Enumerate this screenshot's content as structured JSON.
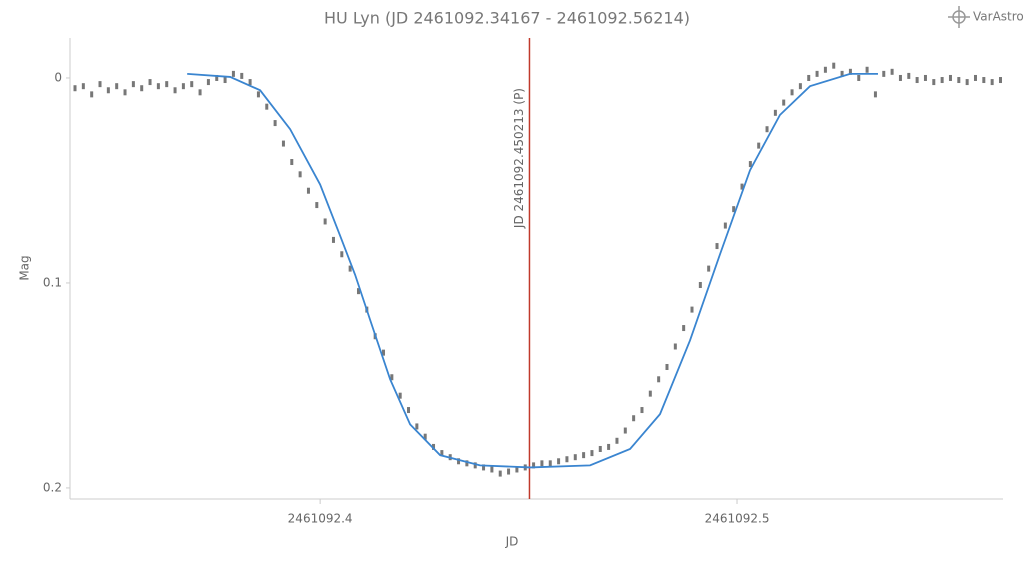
{
  "chart_data": {
    "type": "scatter",
    "title": "HU Lyn (JD 2461092.34167 - 2461092.56214)",
    "watermark": "VarAstro",
    "xlabel": "JD",
    "ylabel": "Mag",
    "xlim": [
      2461092.34,
      2461092.5638
    ],
    "ylim": [
      -0.0195,
      0.2054
    ],
    "y_reversed": true,
    "xticks": [
      2461092.4,
      2461092.5
    ],
    "yticks": [
      0,
      0.1,
      0.2
    ],
    "vline": {
      "x": 2461092.450213,
      "label": "JD 2461092.450213 (P)",
      "color": "#c0392b"
    },
    "series": [
      {
        "type": "scatter",
        "color": "#777777",
        "x": [
          2461092.3412,
          2461092.3432,
          2461092.3452,
          2461092.3472,
          2461092.3492,
          2461092.3512,
          2461092.3532,
          2461092.3552,
          2461092.3572,
          2461092.3592,
          2461092.3612,
          2461092.3632,
          2461092.3652,
          2461092.3672,
          2461092.3692,
          2461092.3712,
          2461092.3732,
          2461092.3752,
          2461092.3772,
          2461092.3792,
          2461092.3812,
          2461092.3832,
          2461092.3852,
          2461092.3872,
          2461092.3892,
          2461092.3912,
          2461092.3932,
          2461092.3952,
          2461092.3972,
          2461092.3992,
          2461092.4012,
          2461092.4032,
          2461092.4052,
          2461092.4072,
          2461092.4092,
          2461092.4112,
          2461092.4132,
          2461092.4152,
          2461092.4172,
          2461092.4192,
          2461092.4212,
          2461092.4232,
          2461092.4252,
          2461092.4272,
          2461092.4292,
          2461092.4312,
          2461092.4332,
          2461092.4352,
          2461092.4372,
          2461092.4392,
          2461092.4412,
          2461092.4432,
          2461092.4452,
          2461092.4472,
          2461092.4492,
          2461092.4512,
          2461092.4532,
          2461092.4552,
          2461092.4572,
          2461092.4592,
          2461092.4612,
          2461092.4632,
          2461092.4652,
          2461092.4672,
          2461092.4692,
          2461092.4712,
          2461092.4732,
          2461092.4752,
          2461092.4772,
          2461092.4792,
          2461092.4812,
          2461092.4832,
          2461092.4852,
          2461092.4872,
          2461092.4892,
          2461092.4912,
          2461092.4932,
          2461092.4952,
          2461092.4972,
          2461092.4992,
          2461092.5012,
          2461092.5032,
          2461092.5052,
          2461092.5072,
          2461092.5092,
          2461092.5112,
          2461092.5132,
          2461092.5152,
          2461092.5172,
          2461092.5192,
          2461092.5212,
          2461092.5232,
          2461092.5252,
          2461092.5272,
          2461092.5292,
          2461092.5312,
          2461092.5332,
          2461092.5352,
          2461092.5372,
          2461092.5392,
          2461092.5412,
          2461092.5432,
          2461092.5452,
          2461092.5472,
          2461092.5492,
          2461092.5512,
          2461092.5532,
          2461092.5552,
          2461092.5572,
          2461092.5592,
          2461092.5612,
          2461092.5632
        ],
        "values": [
          0.005,
          0.004,
          0.008,
          0.003,
          0.006,
          0.004,
          0.007,
          0.003,
          0.005,
          0.002,
          0.004,
          0.003,
          0.006,
          0.004,
          0.003,
          0.007,
          0.002,
          0.0,
          0.001,
          -0.002,
          -0.001,
          0.002,
          0.008,
          0.014,
          0.022,
          0.032,
          0.041,
          0.047,
          0.055,
          0.062,
          0.07,
          0.079,
          0.086,
          0.093,
          0.104,
          0.113,
          0.126,
          0.134,
          0.146,
          0.155,
          0.162,
          0.17,
          0.175,
          0.18,
          0.183,
          0.185,
          0.187,
          0.188,
          0.189,
          0.19,
          0.191,
          0.193,
          0.192,
          0.191,
          0.19,
          0.189,
          0.188,
          0.188,
          0.187,
          0.186,
          0.185,
          0.184,
          0.183,
          0.181,
          0.18,
          0.177,
          0.172,
          0.166,
          0.162,
          0.154,
          0.147,
          0.141,
          0.131,
          0.122,
          0.113,
          0.101,
          0.093,
          0.082,
          0.072,
          0.064,
          0.053,
          0.042,
          0.033,
          0.025,
          0.017,
          0.012,
          0.007,
          0.004,
          0.0,
          -0.002,
          -0.004,
          -0.006,
          -0.002,
          -0.003,
          0.0,
          -0.004,
          0.008,
          -0.002,
          -0.003,
          0.0,
          -0.001,
          0.001,
          0.0,
          0.002,
          0.001,
          0.0,
          0.001,
          0.002,
          0.0,
          0.001,
          0.002,
          0.001
        ]
      },
      {
        "type": "line",
        "color": "#3a85d0",
        "x": [
          2461092.36811,
          2461092.37842,
          2461092.38561,
          2461092.39281,
          2461092.4,
          2461092.4048,
          2461092.40839,
          2461092.41199,
          2461092.41679,
          2461092.42158,
          2461092.42878,
          2461092.43837,
          2461092.45036,
          2461092.46475,
          2461092.47434,
          2461092.48153,
          2461092.48873,
          2461092.49592,
          2461092.50312,
          2461092.51031,
          2461092.51751,
          2461092.5271,
          2461092.53381
        ],
        "values": [
          -0.002,
          -0.0005,
          0.006,
          0.025,
          0.052,
          0.077,
          0.096,
          0.118,
          0.147,
          0.169,
          0.184,
          0.189,
          0.19,
          0.189,
          0.181,
          0.164,
          0.128,
          0.086,
          0.045,
          0.018,
          0.004,
          -0.002,
          -0.002
        ]
      }
    ]
  }
}
